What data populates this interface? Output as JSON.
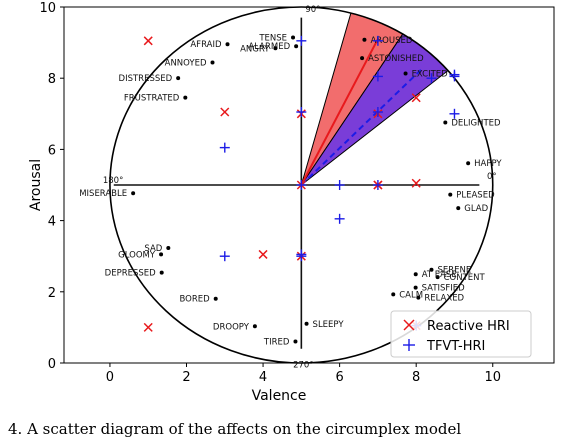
{
  "chart_data": {
    "type": "scatter",
    "title": "",
    "xlabel": "Valence",
    "ylabel": "Arousal",
    "xlim": [
      -1.2,
      11.6
    ],
    "ylim": [
      0,
      10
    ],
    "xticks": [
      0,
      2,
      4,
      6,
      8,
      10
    ],
    "yticks": [
      0,
      2,
      4,
      6,
      8,
      10
    ],
    "grid": false,
    "legend_position": "bottom-right",
    "series": [
      {
        "name": "Reactive HRI",
        "marker": "x",
        "color": "#e8191c",
        "points": [
          [
            1,
            9.05
          ],
          [
            3,
            7.05
          ],
          [
            5,
            7.0
          ],
          [
            7,
            7.0
          ],
          [
            8,
            7.45
          ],
          [
            5,
            5.0
          ],
          [
            7,
            5.0
          ],
          [
            7,
            5.0
          ],
          [
            8,
            5.05
          ],
          [
            4,
            3.05
          ],
          [
            5,
            3.0
          ],
          [
            1,
            1.0
          ],
          [
            8,
            1.05
          ]
        ]
      },
      {
        "name": "TFVT-HRI",
        "marker": "+",
        "color": "#1c1ce6",
        "points": [
          [
            5,
            9.05
          ],
          [
            7,
            9.05
          ],
          [
            7,
            8.05
          ],
          [
            9,
            8.05
          ],
          [
            9,
            8.1
          ],
          [
            8.4,
            8.0
          ],
          [
            5,
            7.05
          ],
          [
            7,
            7.05
          ],
          [
            9,
            7.0
          ],
          [
            3,
            6.05
          ],
          [
            5,
            5.0
          ],
          [
            6,
            5.0
          ],
          [
            7,
            5.0
          ],
          [
            6,
            4.05
          ],
          [
            3,
            3.0
          ],
          [
            5,
            3.0
          ],
          [
            5,
            3.05
          ],
          [
            8,
            1.05
          ]
        ]
      }
    ],
    "circumplex": {
      "center": [
        5,
        5
      ],
      "angle_labels": [
        "90°",
        "0°",
        "180°",
        "270°"
      ],
      "affects": [
        {
          "label": "ALARMED",
          "angle": 92
        },
        {
          "label": "TENSE",
          "angle": 93
        },
        {
          "label": "AROUSED",
          "angle": 68
        },
        {
          "label": "ASTONISHED",
          "angle": 66
        },
        {
          "label": "EXCITED",
          "angle": 49
        },
        {
          "label": "AFRAID",
          "angle": 116
        },
        {
          "label": "ANGRY",
          "angle": 100
        },
        {
          "label": "ANNOYED",
          "angle": 124
        },
        {
          "label": "DISTRESSED",
          "angle": 137
        },
        {
          "label": "FRUSTRATED",
          "angle": 141
        },
        {
          "label": "DELIGHTED",
          "angle": 25
        },
        {
          "label": "HAPPY",
          "angle": 8
        },
        {
          "label": "PLEASED",
          "angle": -4
        },
        {
          "label": "GLAD",
          "angle": -9
        },
        {
          "label": "MISERABLE",
          "angle": 183
        },
        {
          "label": "SAD",
          "angle": 207
        },
        {
          "label": "GLOOMY",
          "angle": 208
        },
        {
          "label": "DEPRESSED",
          "angle": 214
        },
        {
          "label": "BORED",
          "angle": 235
        },
        {
          "label": "DROOPY",
          "angle": 253
        },
        {
          "label": "TIRED",
          "angle": 268
        },
        {
          "label": "SLEEPY",
          "angle": 272
        },
        {
          "label": "SERENE",
          "angle": -35
        },
        {
          "label": "CONTENT",
          "angle": -36
        },
        {
          "label": "AT EASE",
          "angle": -40
        },
        {
          "label": "SATISFIED",
          "angle": -44
        },
        {
          "label": "RELAXED",
          "angle": -46
        },
        {
          "label": "CALM",
          "angle": -52
        }
      ]
    }
  },
  "caption": "4.   A scatter diagram of the affects on the circumplex model"
}
